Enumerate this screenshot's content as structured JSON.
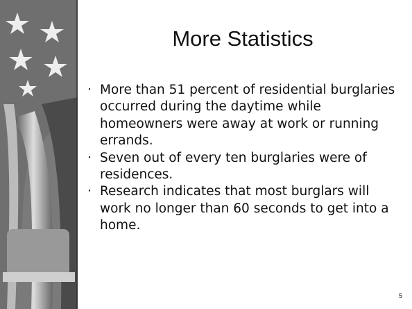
{
  "slide": {
    "title": "More Statistics",
    "bullets": [
      "More than 51 percent of residential burglaries occurred during the daytime while homeowners were away at work or running errands.",
      "Seven out of every ten burglaries were of residences.",
      "Research indicates that most burglars will work no longer than 60 seconds to get into a home."
    ],
    "page_number": "5"
  }
}
